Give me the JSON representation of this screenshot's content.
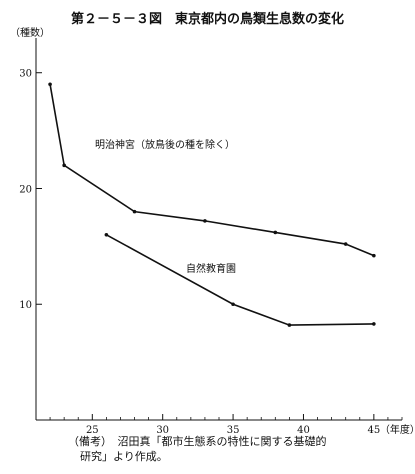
{
  "title": "第２－５－３図　東京都内の鳥類生息数の変化",
  "note": {
    "line1": "（備考）　沼田真「都市生態系の特性に関する基礎的",
    "line2": "研究」より作成。"
  },
  "chart_data": {
    "type": "line",
    "title": "第２－５－３図　東京都内の鳥類生息数の変化",
    "xlabel": "（年度）",
    "ylabel": "（種数）",
    "xlim": [
      21,
      47
    ],
    "ylim": [
      0,
      33
    ],
    "x_ticks": [
      25,
      30,
      35,
      40,
      45
    ],
    "x_tick_labels": [
      "25",
      "30",
      "35",
      "40",
      "45"
    ],
    "y_ticks": [
      10,
      20,
      30
    ],
    "y_tick_labels": [
      "10",
      "20",
      "30"
    ],
    "grid": false,
    "series": [
      {
        "name": "明治神宮（放鳥後の種を除く）",
        "x": [
          22,
          23,
          28,
          33,
          38,
          43,
          45
        ],
        "y": [
          29,
          22,
          18,
          17.2,
          16.2,
          15.2,
          14.2
        ]
      },
      {
        "name": "自然教育園",
        "x": [
          26,
          35,
          39,
          45
        ],
        "y": [
          16,
          10,
          8.2,
          8.3
        ]
      }
    ]
  }
}
